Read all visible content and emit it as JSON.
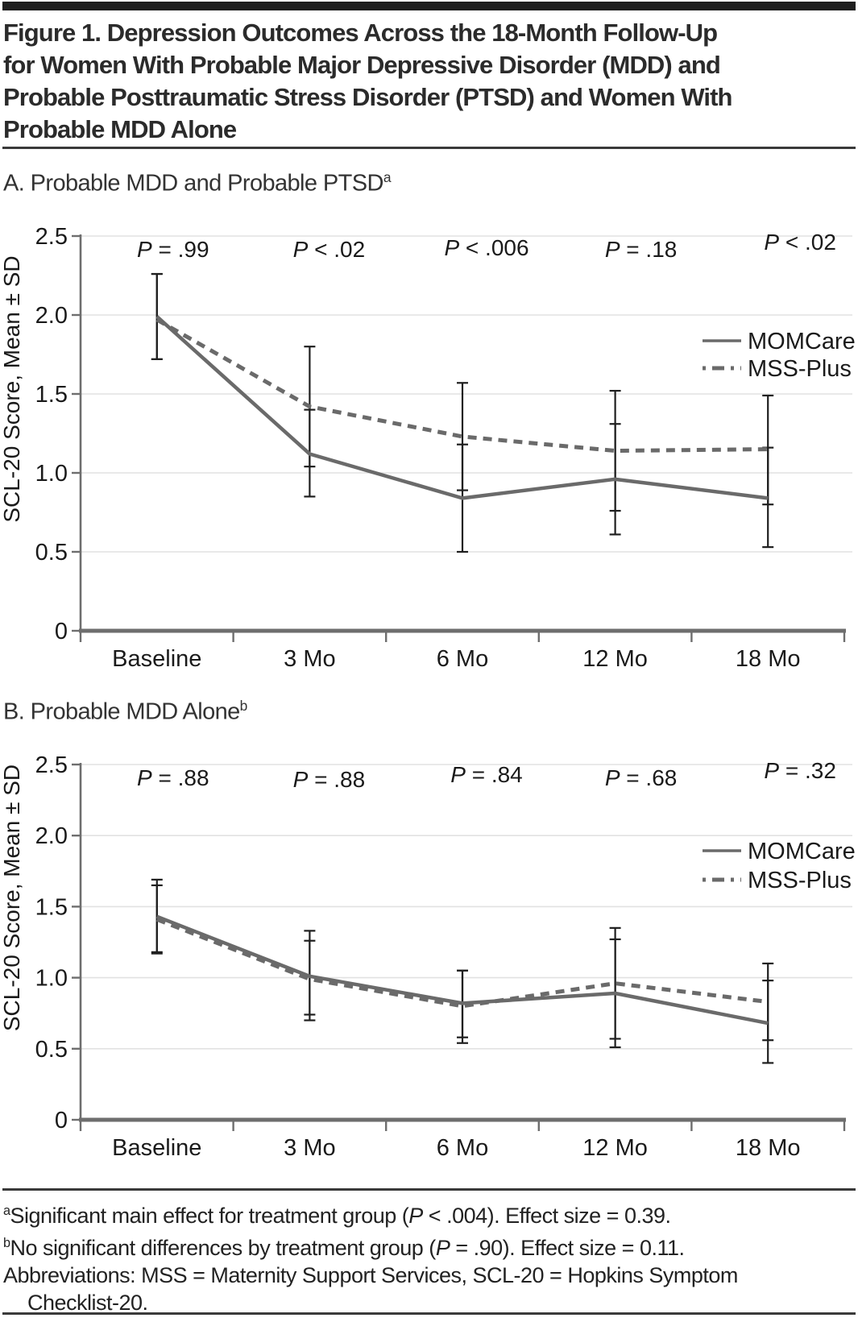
{
  "figure": {
    "title_lines": [
      "Figure 1. Depression Outcomes Across the 18-Month Follow-Up",
      "for Women With Probable Major Depressive Disorder (MDD) and",
      "Probable Posttraumatic Stress Disorder (PTSD) and Women With",
      "Probable MDD Alone"
    ]
  },
  "colors": {
    "line": "#6a6a6a",
    "axis": "#6e6e6e",
    "grid": "#e2e2e2",
    "error_bar": "#1f1f1f",
    "text": "#1a1a1a"
  },
  "chart_data": [
    {
      "id": "panel-a",
      "type": "line",
      "panel_label": "A. Probable MDD and Probable PTSD",
      "panel_superscript": "a",
      "categories": [
        "Baseline",
        "3 Mo",
        "6 Mo",
        "12 Mo",
        "18 Mo"
      ],
      "ylabel": "SCL-20 Score, Mean ± SD",
      "xlabel": "",
      "ylim": [
        0,
        2.5
      ],
      "yticks": [
        0,
        0.5,
        1.0,
        1.5,
        2.0,
        2.5
      ],
      "ytick_labels": [
        "0",
        "0.5",
        "1.0",
        "1.5",
        "2.0",
        "2.5"
      ],
      "grid": true,
      "legend_position": "right-upper",
      "p_values": [
        "P = .99",
        "P < .02",
        "P < .006",
        "P = .18",
        "P < .02"
      ],
      "series": [
        {
          "name": "MOMCare",
          "style": "solid",
          "values": [
            1.99,
            1.12,
            0.84,
            0.96,
            0.84
          ],
          "error_low": [
            1.72,
            0.85,
            0.5,
            0.61,
            0.53
          ],
          "error_high": [
            2.26,
            1.4,
            1.18,
            1.31,
            1.16
          ]
        },
        {
          "name": "MSS-Plus",
          "style": "dashed",
          "values": [
            1.97,
            1.42,
            1.23,
            1.14,
            1.15
          ],
          "error_low": [
            1.72,
            1.04,
            0.89,
            0.76,
            0.8
          ],
          "error_high": [
            2.26,
            1.8,
            1.57,
            1.52,
            1.49
          ]
        }
      ]
    },
    {
      "id": "panel-b",
      "type": "line",
      "panel_label": "B. Probable MDD Alone",
      "panel_superscript": "b",
      "categories": [
        "Baseline",
        "3 Mo",
        "6 Mo",
        "12 Mo",
        "18 Mo"
      ],
      "ylabel": "SCL-20 Score, Mean ± SD",
      "xlabel": "",
      "ylim": [
        0,
        2.5
      ],
      "yticks": [
        0,
        0.5,
        1.0,
        1.5,
        2.0,
        2.5
      ],
      "ytick_labels": [
        "0",
        "0.5",
        "1.0",
        "1.5",
        "2.0",
        "2.5"
      ],
      "grid": true,
      "legend_position": "right-upper",
      "p_values": [
        "P = .88",
        "P = .88",
        "P = .84",
        "P = .68",
        "P = .32"
      ],
      "series": [
        {
          "name": "MOMCare",
          "style": "solid",
          "values": [
            1.43,
            1.01,
            0.82,
            0.89,
            0.68
          ],
          "error_low": [
            1.18,
            0.7,
            0.58,
            0.51,
            0.4
          ],
          "error_high": [
            1.69,
            1.33,
            1.05,
            1.27,
            0.98
          ]
        },
        {
          "name": "MSS-Plus",
          "style": "dashed",
          "values": [
            1.41,
            0.99,
            0.8,
            0.96,
            0.83
          ],
          "error_low": [
            1.17,
            0.74,
            0.54,
            0.57,
            0.56
          ],
          "error_high": [
            1.65,
            1.26,
            1.05,
            1.35,
            1.1
          ]
        }
      ]
    }
  ],
  "footnotes": [
    {
      "sup": "a",
      "text": "Significant main effect for treatment group (P < .004). Effect size = 0.39.",
      "indent": false
    },
    {
      "sup": "b",
      "text": "No significant differences by treatment group (P = .90). Effect size = 0.11.",
      "indent": false
    },
    {
      "sup": "",
      "text": "Abbreviations: MSS = Maternity Support Services, SCL-20 = Hopkins Symptom",
      "indent": false
    },
    {
      "sup": "",
      "text": "Checklist-20.",
      "indent": true
    }
  ]
}
